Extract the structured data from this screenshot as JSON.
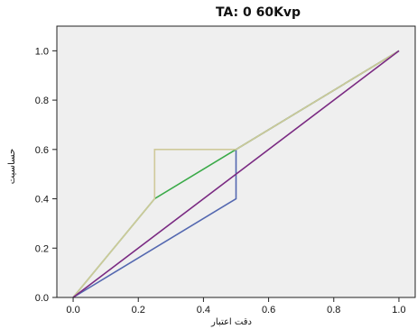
{
  "chart_data": {
    "type": "line",
    "title": "TA: 0    60Kvp",
    "xlabel": "دقت اعتبار",
    "ylabel": "حساسیت",
    "xlim": [
      -0.05,
      1.05
    ],
    "ylim": [
      0.0,
      1.1
    ],
    "xticks": [
      "0.0",
      "0.2",
      "0.4",
      "0.6",
      "0.8",
      "1.0"
    ],
    "yticks": [
      "0.0",
      "0.2",
      "0.4",
      "0.6",
      "0.8",
      "1.0"
    ],
    "xtick_values": [
      0.0,
      0.2,
      0.4,
      0.6,
      0.8,
      1.0
    ],
    "ytick_values": [
      0.0,
      0.2,
      0.4,
      0.6,
      0.8,
      1.0
    ],
    "grid": false,
    "background": "#efefef",
    "series": [
      {
        "color": "#5468b0",
        "points": [
          [
            0.0,
            0.0
          ],
          [
            0.5,
            0.4
          ],
          [
            0.5,
            0.6
          ],
          [
            1.0,
            1.0
          ]
        ]
      },
      {
        "color": "#3aaa48",
        "points": [
          [
            0.0,
            0.0
          ],
          [
            0.25,
            0.4
          ],
          [
            0.5,
            0.6
          ],
          [
            1.0,
            1.0
          ]
        ]
      },
      {
        "color": "#cfc99a",
        "points": [
          [
            0.0,
            0.0
          ],
          [
            0.25,
            0.4
          ],
          [
            0.25,
            0.6
          ],
          [
            0.5,
            0.6
          ],
          [
            1.0,
            1.0
          ]
        ]
      },
      {
        "color": "#7a2a82",
        "points": [
          [
            0.0,
            0.0
          ],
          [
            1.0,
            1.0
          ]
        ]
      }
    ]
  }
}
